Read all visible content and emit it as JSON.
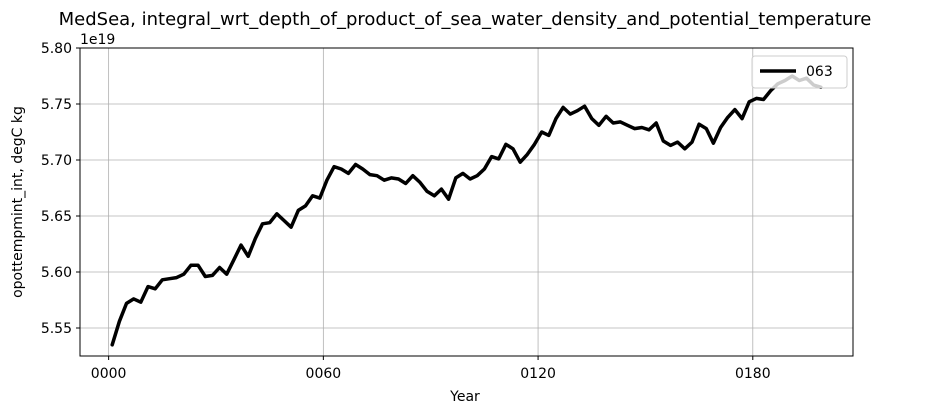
{
  "chart_data": {
    "type": "line",
    "title": "MedSea, integral_wrt_depth_of_product_of_sea_water_density_and_potential_temperature",
    "xlabel": "Year",
    "ylabel": "opottempmint_int, degC kg",
    "y_offset_label": "1e19",
    "xlim": [
      -8,
      208
    ],
    "ylim": [
      5.525,
      5.8
    ],
    "x_ticks": [
      0,
      60,
      120,
      180
    ],
    "x_tick_labels": [
      "0000",
      "0060",
      "0120",
      "0180"
    ],
    "y_ticks": [
      5.55,
      5.6,
      5.65,
      5.7,
      5.75,
      5.8
    ],
    "y_tick_labels": [
      "5.55",
      "5.60",
      "5.65",
      "5.70",
      "5.75",
      "5.80"
    ],
    "grid": true,
    "legend_position": "top-right",
    "series": [
      {
        "name": "063",
        "color": "#000000",
        "x": [
          1,
          3,
          5,
          7,
          9,
          11,
          13,
          15,
          17,
          19,
          21,
          23,
          25,
          27,
          29,
          31,
          33,
          35,
          37,
          39,
          41,
          43,
          45,
          47,
          49,
          51,
          53,
          55,
          57,
          59,
          61,
          63,
          65,
          67,
          69,
          71,
          73,
          75,
          77,
          79,
          81,
          83,
          85,
          87,
          89,
          91,
          93,
          95,
          97,
          99,
          101,
          103,
          105,
          107,
          109,
          111,
          113,
          115,
          117,
          119,
          121,
          123,
          125,
          127,
          129,
          131,
          133,
          135,
          137,
          139,
          141,
          143,
          145,
          147,
          149,
          151,
          153,
          155,
          157,
          159,
          161,
          163,
          165,
          167,
          169,
          171,
          173,
          175,
          177,
          179,
          181,
          183,
          185,
          187,
          189,
          191,
          193,
          195,
          197,
          199
        ],
        "values": [
          5.535,
          5.556,
          5.572,
          5.576,
          5.573,
          5.587,
          5.585,
          5.593,
          5.594,
          5.595,
          5.598,
          5.606,
          5.606,
          5.596,
          5.597,
          5.604,
          5.598,
          5.611,
          5.624,
          5.614,
          5.63,
          5.643,
          5.644,
          5.652,
          5.646,
          5.64,
          5.655,
          5.659,
          5.668,
          5.666,
          5.682,
          5.694,
          5.692,
          5.688,
          5.696,
          5.692,
          5.687,
          5.686,
          5.682,
          5.684,
          5.683,
          5.679,
          5.686,
          5.68,
          5.672,
          5.668,
          5.674,
          5.665,
          5.684,
          5.688,
          5.683,
          5.686,
          5.692,
          5.703,
          5.701,
          5.714,
          5.71,
          5.698,
          5.705,
          5.714,
          5.725,
          5.722,
          5.737,
          5.747,
          5.741,
          5.744,
          5.748,
          5.737,
          5.731,
          5.739,
          5.733,
          5.734,
          5.731,
          5.728,
          5.729,
          5.727,
          5.733,
          5.717,
          5.713,
          5.716,
          5.71,
          5.716,
          5.732,
          5.728,
          5.715,
          5.729,
          5.738,
          5.745,
          5.737,
          5.752,
          5.755,
          5.754,
          5.762,
          5.768,
          5.771,
          5.775,
          5.771,
          5.773,
          5.767,
          5.765
        ]
      }
    ]
  }
}
